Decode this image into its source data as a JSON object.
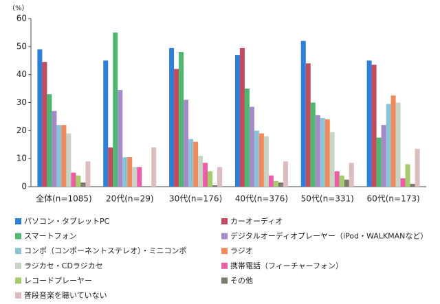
{
  "chart_data": {
    "type": "bar",
    "y_label": "（%）",
    "categories": [
      "全体(n=1085)",
      "20代(n=29)",
      "30代(n=176)",
      "40代(n=376)",
      "50代(n=331)",
      "60代(n=173)"
    ],
    "ylim": [
      0,
      60
    ],
    "yticks": [
      0,
      10,
      20,
      30,
      40,
      50,
      60
    ],
    "series": [
      {
        "name": "パソコン・タブレットPC",
        "color": "#2e7fd8",
        "values": [
          49,
          45,
          49.5,
          47,
          52,
          45
        ]
      },
      {
        "name": "カーオーディオ",
        "color": "#c44a5e",
        "values": [
          44.5,
          14,
          42,
          49.5,
          44,
          43.5
        ]
      },
      {
        "name": "スマートフォン",
        "color": "#4fb870",
        "values": [
          33,
          55,
          48,
          35,
          30,
          17.5
        ]
      },
      {
        "name": "デジタルオーディオプレーヤー（iPod・WALKMANなど）",
        "color": "#a48ac6",
        "values": [
          27,
          34.5,
          31,
          28.5,
          25.5,
          22
        ]
      },
      {
        "name": "コンポ（コンポーネントステレオ）・ミニコンポ",
        "color": "#8ec3d6",
        "values": [
          22,
          10.5,
          17,
          20,
          24.5,
          29.5
        ]
      },
      {
        "name": "ラジオ",
        "color": "#f08a5c",
        "values": [
          22,
          10.5,
          16,
          19,
          24,
          32.5
        ]
      },
      {
        "name": "ラジカセ・CDラジカセ",
        "color": "#c8d4c8",
        "values": [
          19,
          7,
          11,
          18,
          19.5,
          30
        ]
      },
      {
        "name": "携帯電話（フィーチャーフォン）",
        "color": "#e85fa8",
        "values": [
          5,
          7,
          8.5,
          4,
          5.5,
          3
        ]
      },
      {
        "name": "レコードプレーヤー",
        "color": "#a8cc6c",
        "values": [
          4,
          0,
          5.5,
          2,
          4,
          8
        ]
      },
      {
        "name": "その他",
        "color": "#7a7a6a",
        "values": [
          1.5,
          0,
          0.5,
          1.5,
          2.5,
          1
        ]
      },
      {
        "name": "普段音楽を聴いていない",
        "color": "#dcbcbc",
        "values": [
          9,
          14,
          7,
          9,
          8.5,
          13.5
        ]
      }
    ]
  }
}
